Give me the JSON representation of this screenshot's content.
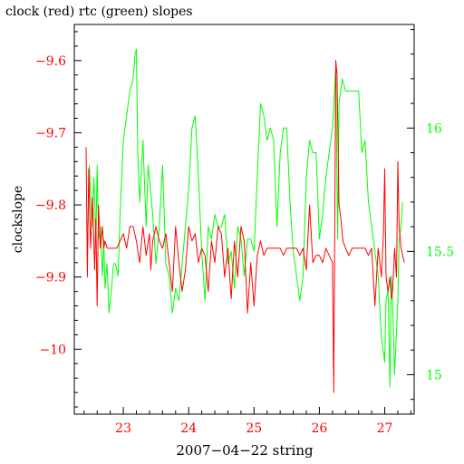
{
  "chart_data": {
    "type": "line",
    "title": "clock (red) rtc (green) slopes",
    "xlabel": "2007−04−22 string",
    "ylabel": "clockslope",
    "x_ticks": [
      "23",
      "24",
      "25",
      "26",
      "27"
    ],
    "x_tick_values": [
      23,
      24,
      25,
      26,
      27
    ],
    "xlim": [
      22.25,
      27.45
    ],
    "ylim_left": [
      -10.09,
      -9.55
    ],
    "ylim_right": [
      14.84,
      16.42
    ],
    "y_ticks_left": [
      -9.6,
      -9.7,
      -9.8,
      -9.9,
      -10.0
    ],
    "y_tick_labels_left": [
      "−9.6",
      "−9.7",
      "−9.8",
      "−9.9",
      "−10"
    ],
    "y_ticks_right": [
      16,
      15.5,
      15
    ],
    "y_tick_labels_right": [
      "16",
      "15.5",
      "15"
    ],
    "colors": {
      "red_series": "#ff0000",
      "green_series": "#00ff00",
      "axes": "#000000"
    },
    "series": [
      {
        "axis": "left",
        "color": "#ff0000",
        "x": [
          22.43,
          22.45,
          22.47,
          22.5,
          22.53,
          22.56,
          22.58,
          22.6,
          22.62,
          22.65,
          22.68,
          22.7,
          22.72,
          22.75,
          22.8,
          22.85,
          22.9,
          22.95,
          23.0,
          23.05,
          23.1,
          23.15,
          23.2,
          23.25,
          23.3,
          23.35,
          23.4,
          23.42,
          23.45,
          23.5,
          23.55,
          23.6,
          23.65,
          23.7,
          23.75,
          23.8,
          23.85,
          23.9,
          23.95,
          24.0,
          24.05,
          24.1,
          24.15,
          24.2,
          24.25,
          24.3,
          24.35,
          24.4,
          24.45,
          24.5,
          24.55,
          24.6,
          24.65,
          24.7,
          24.75,
          24.8,
          24.85,
          24.9,
          24.95,
          25.0,
          25.05,
          25.1,
          25.15,
          25.2,
          25.25,
          25.3,
          25.35,
          25.4,
          25.45,
          25.5,
          25.55,
          25.6,
          25.65,
          25.7,
          25.75,
          25.8,
          25.85,
          25.9,
          25.95,
          26.0,
          26.05,
          26.1,
          26.15,
          26.2,
          26.22,
          26.25,
          26.27,
          26.3,
          26.33,
          26.36,
          26.4,
          26.45,
          26.5,
          26.55,
          26.6,
          26.65,
          26.7,
          26.75,
          26.8,
          26.85,
          26.9,
          26.95,
          26.98,
          27.0,
          27.02,
          27.05,
          27.08,
          27.1,
          27.12,
          27.15,
          27.18,
          27.2,
          27.22,
          27.25,
          27.3
        ],
        "y": [
          -9.72,
          -9.9,
          -9.75,
          -9.86,
          -9.79,
          -9.89,
          -9.82,
          -9.94,
          -9.8,
          -9.86,
          -9.83,
          -9.86,
          -9.85,
          -9.86,
          -9.86,
          -9.86,
          -9.86,
          -9.85,
          -9.84,
          -9.86,
          -9.83,
          -9.83,
          -9.85,
          -9.88,
          -9.83,
          -9.87,
          -9.84,
          -9.89,
          -9.85,
          -9.83,
          -9.85,
          -9.86,
          -9.84,
          -9.88,
          -9.92,
          -9.83,
          -9.88,
          -9.92,
          -9.89,
          -9.83,
          -9.85,
          -9.84,
          -9.88,
          -9.86,
          -9.87,
          -9.92,
          -9.85,
          -9.88,
          -9.83,
          -9.84,
          -9.9,
          -9.86,
          -9.93,
          -9.85,
          -9.9,
          -9.83,
          -9.85,
          -9.95,
          -9.88,
          -9.94,
          -9.87,
          -9.85,
          -9.87,
          -9.86,
          -9.86,
          -9.86,
          -9.86,
          -9.86,
          -9.87,
          -9.86,
          -9.86,
          -9.86,
          -9.86,
          -9.87,
          -9.86,
          -9.89,
          -9.8,
          -9.88,
          -9.87,
          -9.87,
          -9.88,
          -9.86,
          -9.87,
          -9.88,
          -10.06,
          -9.6,
          -9.62,
          -9.8,
          -9.82,
          -9.85,
          -9.86,
          -9.87,
          -9.86,
          -9.86,
          -9.86,
          -9.86,
          -9.86,
          -9.87,
          -9.86,
          -9.94,
          -9.86,
          -9.9,
          -9.84,
          -9.75,
          -9.9,
          -9.92,
          -9.9,
          -9.93,
          -9.92,
          -9.86,
          -9.9,
          -9.74,
          -9.83,
          -9.86,
          -9.88
        ]
      },
      {
        "axis": "right",
        "color": "#00ff00",
        "x": [
          22.45,
          22.48,
          22.52,
          22.55,
          22.58,
          22.6,
          22.62,
          22.65,
          22.68,
          22.7,
          22.72,
          22.75,
          22.78,
          22.82,
          22.85,
          22.88,
          22.92,
          22.95,
          23.0,
          23.05,
          23.1,
          23.15,
          23.18,
          23.2,
          23.22,
          23.25,
          23.3,
          23.35,
          23.38,
          23.4,
          23.45,
          23.5,
          23.55,
          23.6,
          23.65,
          23.7,
          23.75,
          23.8,
          23.85,
          23.9,
          23.95,
          24.0,
          24.05,
          24.1,
          24.15,
          24.2,
          24.25,
          24.3,
          24.35,
          24.4,
          24.45,
          24.5,
          24.55,
          24.6,
          24.65,
          24.7,
          24.75,
          24.8,
          24.85,
          24.9,
          24.95,
          25.0,
          25.05,
          25.1,
          25.15,
          25.2,
          25.25,
          25.3,
          25.35,
          25.4,
          25.45,
          25.5,
          25.55,
          25.6,
          25.65,
          25.7,
          25.75,
          25.8,
          25.85,
          25.9,
          25.95,
          26.0,
          26.05,
          26.1,
          26.15,
          26.2,
          26.25,
          26.28,
          26.3,
          26.35,
          26.4,
          26.45,
          26.5,
          26.55,
          26.6,
          26.65,
          26.7,
          26.75,
          26.8,
          26.85,
          26.9,
          26.95,
          27.0,
          27.02,
          27.05,
          27.08,
          27.1,
          27.12,
          27.15,
          27.2,
          27.22,
          27.25,
          27.27
        ],
        "y": [
          15.5,
          15.85,
          15.6,
          15.8,
          15.55,
          15.85,
          15.55,
          15.6,
          15.4,
          15.55,
          15.35,
          15.45,
          15.25,
          15.35,
          15.45,
          15.45,
          15.4,
          15.65,
          15.95,
          16.05,
          16.15,
          16.2,
          16.3,
          16.32,
          15.9,
          15.7,
          15.95,
          15.6,
          15.85,
          15.8,
          15.65,
          15.45,
          15.6,
          15.85,
          15.45,
          15.4,
          15.25,
          15.35,
          15.3,
          15.45,
          15.6,
          15.75,
          16.0,
          16.05,
          15.8,
          15.5,
          15.3,
          15.6,
          15.55,
          15.65,
          15.6,
          15.6,
          15.65,
          15.45,
          15.5,
          15.35,
          15.6,
          15.55,
          15.4,
          15.55,
          15.55,
          15.5,
          15.8,
          16.1,
          16.05,
          15.95,
          16.0,
          15.95,
          15.6,
          15.9,
          16.0,
          16.0,
          15.7,
          15.5,
          15.4,
          15.3,
          15.4,
          15.8,
          15.95,
          15.9,
          15.9,
          15.55,
          15.65,
          15.8,
          15.9,
          16.0,
          16.25,
          15.55,
          16.1,
          16.2,
          16.15,
          16.15,
          16.15,
          16.15,
          16.15,
          15.9,
          15.95,
          15.7,
          15.6,
          15.5,
          15.4,
          15.15,
          15.05,
          15.3,
          15.35,
          14.95,
          15.4,
          15.3,
          15.0,
          15.3,
          15.55,
          15.6,
          15.7
        ]
      }
    ]
  }
}
